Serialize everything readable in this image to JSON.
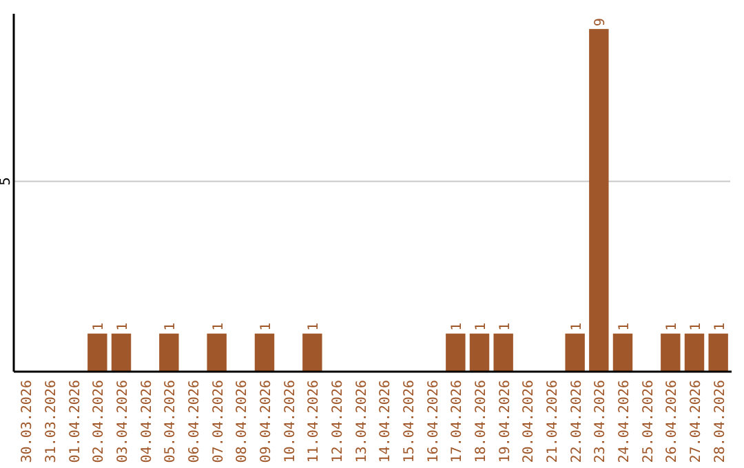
{
  "chart_data": {
    "type": "bar",
    "categories": [
      "30.03.2026",
      "31.03.2026",
      "01.04.2026",
      "02.04.2026",
      "03.04.2026",
      "04.04.2026",
      "05.04.2026",
      "06.04.2026",
      "07.04.2026",
      "08.04.2026",
      "09.04.2026",
      "10.04.2026",
      "11.04.2026",
      "12.04.2026",
      "13.04.2026",
      "14.04.2026",
      "15.04.2026",
      "16.04.2026",
      "17.04.2026",
      "18.04.2026",
      "19.04.2026",
      "20.04.2026",
      "21.04.2026",
      "22.04.2026",
      "23.04.2026",
      "24.04.2026",
      "25.04.2026",
      "26.04.2026",
      "27.04.2026",
      "28.04.2026"
    ],
    "values": [
      0,
      0,
      0,
      1,
      1,
      0,
      1,
      0,
      1,
      0,
      1,
      0,
      1,
      0,
      0,
      0,
      0,
      0,
      1,
      1,
      1,
      0,
      0,
      1,
      9,
      1,
      0,
      1,
      1,
      1
    ],
    "value_labels": [
      null,
      null,
      null,
      "1",
      "1",
      null,
      "1",
      null,
      "1",
      null,
      "1",
      null,
      "1",
      null,
      null,
      null,
      null,
      null,
      "1",
      "1",
      "1",
      null,
      null,
      "1",
      "9",
      "1",
      null,
      "1",
      "1",
      "1"
    ],
    "color": "#a0582a",
    "ylim": [
      0,
      9.4
    ],
    "yticks": [
      5
    ],
    "grid": "y"
  }
}
